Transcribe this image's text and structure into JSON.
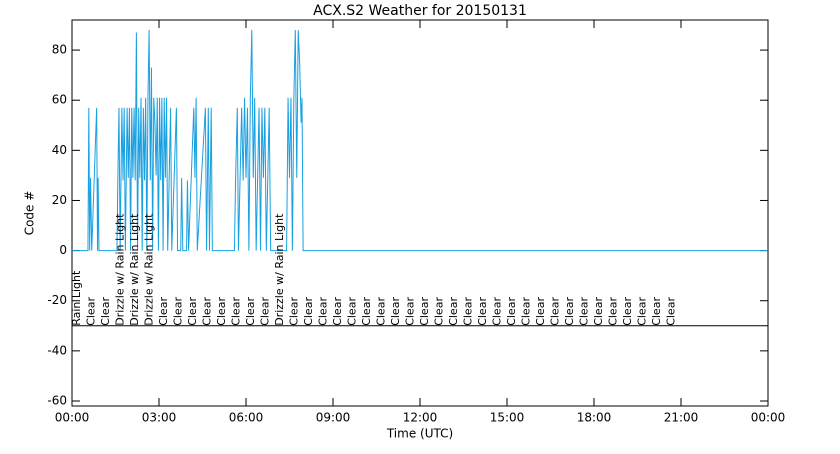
{
  "chart_data": {
    "type": "line",
    "title": "ACX.S2 Weather for 20150131",
    "xlabel": "Time (UTC)",
    "ylabel": "Code #",
    "x": [
      0,
      0.55,
      0.58,
      0.61,
      0.64,
      0.68,
      0.85,
      0.88,
      0.9,
      0.93,
      1.55,
      1.58,
      1.62,
      1.66,
      1.72,
      1.76,
      1.8,
      1.84,
      1.9,
      1.94,
      1.98,
      2.02,
      2.06,
      2.1,
      2.14,
      2.18,
      2.22,
      2.26,
      2.3,
      2.34,
      2.38,
      2.42,
      2.46,
      2.5,
      2.54,
      2.58,
      2.62,
      2.66,
      2.7,
      2.74,
      2.78,
      2.82,
      2.86,
      2.9,
      2.94,
      2.98,
      3.02,
      3.06,
      3.1,
      3.14,
      3.18,
      3.22,
      3.26,
      3.3,
      3.4,
      3.44,
      3.6,
      3.64,
      3.75,
      3.78,
      3.82,
      3.95,
      3.98,
      4.02,
      4.2,
      4.24,
      4.28,
      4.32,
      4.6,
      4.64,
      4.7,
      4.74,
      4.8,
      4.84,
      5.6,
      5.64,
      5.7,
      5.74,
      5.85,
      5.9,
      5.95,
      6.0,
      6.05,
      6.1,
      6.15,
      6.2,
      6.25,
      6.3,
      6.35,
      6.45,
      6.5,
      6.55,
      6.6,
      6.65,
      6.7,
      6.8,
      6.85,
      7.4,
      7.45,
      7.5,
      7.55,
      7.6,
      7.65,
      7.7,
      7.75,
      7.8,
      7.85,
      7.9,
      7.93,
      7.97,
      24
    ],
    "series": [
      {
        "color": "#18a0e0",
        "values": [
          0,
          0,
          57,
          0,
          29,
          0,
          57,
          0,
          29,
          0,
          0,
          28,
          57,
          0,
          57,
          28,
          57,
          0,
          57,
          29,
          57,
          0,
          57,
          29,
          57,
          28,
          87,
          0,
          57,
          29,
          61,
          0,
          57,
          28,
          61,
          0,
          62,
          88,
          28,
          73,
          0,
          61,
          51,
          30,
          61,
          0,
          61,
          28,
          61,
          0,
          61,
          29,
          61,
          0,
          57,
          0,
          57,
          0,
          0,
          29,
          0,
          0,
          28,
          0,
          57,
          29,
          61,
          0,
          57,
          0,
          57,
          0,
          57,
          0,
          0,
          28,
          57,
          0,
          57,
          28,
          61,
          29,
          57,
          0,
          61,
          88,
          29,
          61,
          0,
          57,
          0,
          57,
          29,
          57,
          0,
          57,
          0,
          0,
          61,
          29,
          61,
          0,
          61,
          88,
          29,
          88,
          75,
          51,
          61,
          0,
          0
        ]
      }
    ],
    "xlim": [
      0,
      24
    ],
    "xticks": [
      {
        "value": 0,
        "label": "00:00"
      },
      {
        "value": 3,
        "label": "03:00"
      },
      {
        "value": 6,
        "label": "06:00"
      },
      {
        "value": 9,
        "label": "09:00"
      },
      {
        "value": 12,
        "label": "12:00"
      },
      {
        "value": 15,
        "label": "15:00"
      },
      {
        "value": 18,
        "label": "18:00"
      },
      {
        "value": 21,
        "label": "21:00"
      },
      {
        "value": 24,
        "label": "00:00"
      }
    ],
    "ylim": [
      -62,
      92
    ],
    "yticks": [
      -60,
      -40,
      -20,
      0,
      20,
      40,
      60,
      80
    ],
    "hline": -30,
    "annotations": [
      {
        "x": 0.17,
        "text": "Rain Light"
      },
      {
        "x": 0.67,
        "text": "Clear"
      },
      {
        "x": 1.17,
        "text": "Clear"
      },
      {
        "x": 1.67,
        "text": "Drizzle w/ Rain Light"
      },
      {
        "x": 2.17,
        "text": "Drizzle w/ Rain Light"
      },
      {
        "x": 2.67,
        "text": "Drizzle w/ Rain Light"
      },
      {
        "x": 3.17,
        "text": "Clear"
      },
      {
        "x": 3.67,
        "text": "Clear"
      },
      {
        "x": 4.17,
        "text": "Clear"
      },
      {
        "x": 4.67,
        "text": "Clear"
      },
      {
        "x": 5.17,
        "text": "Clear"
      },
      {
        "x": 5.67,
        "text": "Clear"
      },
      {
        "x": 6.17,
        "text": "Clear"
      },
      {
        "x": 6.67,
        "text": "Clear"
      },
      {
        "x": 7.17,
        "text": "Drizzle w/ Rain Light"
      },
      {
        "x": 7.67,
        "text": "Clear"
      },
      {
        "x": 8.17,
        "text": "Clear"
      },
      {
        "x": 8.67,
        "text": "Clear"
      },
      {
        "x": 9.17,
        "text": "Clear"
      },
      {
        "x": 9.67,
        "text": "Clear"
      },
      {
        "x": 10.17,
        "text": "Clear"
      },
      {
        "x": 10.67,
        "text": "Clear"
      },
      {
        "x": 11.17,
        "text": "Clear"
      },
      {
        "x": 11.67,
        "text": "Clear"
      },
      {
        "x": 12.17,
        "text": "Clear"
      },
      {
        "x": 12.67,
        "text": "Clear"
      },
      {
        "x": 13.17,
        "text": "Clear"
      },
      {
        "x": 13.67,
        "text": "Clear"
      },
      {
        "x": 14.17,
        "text": "Clear"
      },
      {
        "x": 14.67,
        "text": "Clear"
      },
      {
        "x": 15.17,
        "text": "Clear"
      },
      {
        "x": 15.67,
        "text": "Clear"
      },
      {
        "x": 16.17,
        "text": "Clear"
      },
      {
        "x": 16.67,
        "text": "Clear"
      },
      {
        "x": 17.17,
        "text": "Clear"
      },
      {
        "x": 17.67,
        "text": "Clear"
      },
      {
        "x": 18.17,
        "text": "Clear"
      },
      {
        "x": 18.67,
        "text": "Clear"
      },
      {
        "x": 19.17,
        "text": "Clear"
      },
      {
        "x": 19.67,
        "text": "Clear"
      },
      {
        "x": 20.17,
        "text": "Clear"
      },
      {
        "x": 20.67,
        "text": "Clear"
      }
    ]
  }
}
